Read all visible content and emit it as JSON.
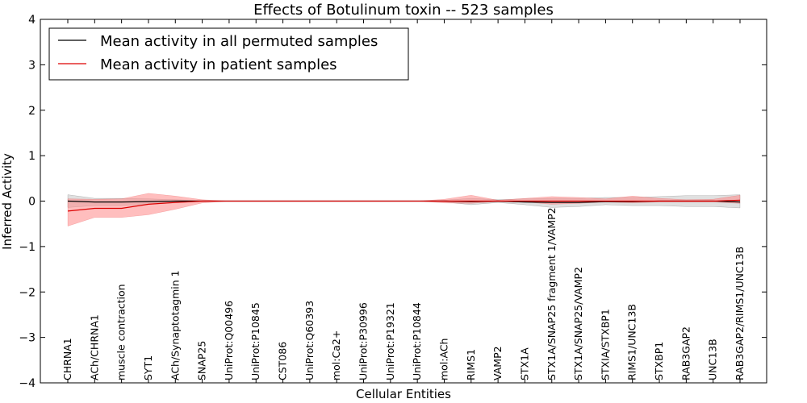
{
  "chart_data": {
    "type": "line",
    "title": "Effects of Botulinum toxin -- 523 samples",
    "xlabel": "Cellular Entities",
    "ylabel": "Inferred Activity",
    "ylim": [
      -4,
      4
    ],
    "yticks": [
      4,
      3,
      2,
      1,
      0,
      -1,
      -2,
      -3,
      -4
    ],
    "ytick_labels": [
      "4",
      "3",
      "2",
      "1",
      "0",
      "−1",
      "−2",
      "−3",
      "−4"
    ],
    "categories": [
      "CHRNA1",
      "ACh/CHRNA1",
      "muscle contraction",
      "SYT1",
      "ACh/Synaptotagmin 1",
      "SNAP25",
      "UniProt:Q00496",
      "UniProt:P10845",
      "CST086",
      "UniProt:Q60393",
      "mol:Ca2+",
      "UniProt:P30996",
      "UniProt:P19321",
      "UniProt:P10844",
      "mol:ACh",
      "RIMS1",
      "VAMP2",
      "STX1A",
      "STX1A/SNAP25 fragment 1/VAMP2",
      "STX1A/SNAP25/VAMP2",
      "STXIA/STXBP1",
      "RIMS1/UNC13B",
      "STXBP1",
      "RAB3GAP2",
      "UNC13B",
      "RAB3GAP2/RIMS1/UNC13B"
    ],
    "series": [
      {
        "name": "Mean activity in all permuted samples",
        "color": "#000000",
        "band_color": "#bbbbbb",
        "values": [
          0.0,
          -0.02,
          -0.02,
          -0.01,
          0.0,
          0.0,
          0.0,
          0.0,
          0.0,
          0.0,
          0.0,
          0.0,
          0.0,
          0.0,
          0.0,
          -0.01,
          0.0,
          -0.02,
          -0.03,
          -0.03,
          -0.01,
          -0.01,
          0.0,
          0.0,
          0.0,
          -0.02
        ],
        "upper": [
          0.14,
          0.06,
          0.06,
          0.05,
          0.03,
          0.01,
          0.0,
          0.0,
          0.0,
          0.0,
          0.0,
          0.0,
          0.0,
          0.0,
          0.02,
          0.06,
          0.03,
          0.05,
          0.06,
          0.06,
          0.08,
          0.08,
          0.1,
          0.12,
          0.12,
          0.14
        ],
        "lower": [
          -0.14,
          -0.1,
          -0.1,
          -0.07,
          -0.04,
          -0.01,
          0.0,
          0.0,
          0.0,
          0.0,
          0.0,
          0.0,
          0.0,
          0.0,
          -0.02,
          -0.08,
          -0.03,
          -0.08,
          -0.14,
          -0.12,
          -0.08,
          -0.1,
          -0.1,
          -0.12,
          -0.12,
          -0.15
        ]
      },
      {
        "name": "Mean activity in patient samples",
        "color": "#dd0000",
        "band_color": "#ff8888",
        "values": [
          -0.22,
          -0.16,
          -0.16,
          -0.07,
          -0.03,
          0.0,
          0.0,
          0.0,
          0.0,
          0.0,
          0.0,
          0.0,
          0.0,
          0.0,
          0.0,
          0.0,
          0.0,
          0.0,
          0.0,
          0.0,
          0.0,
          0.0,
          0.0,
          0.0,
          0.0,
          0.02
        ],
        "upper": [
          0.05,
          0.04,
          0.05,
          0.17,
          0.11,
          0.03,
          0.0,
          0.0,
          0.0,
          0.0,
          0.0,
          0.0,
          0.0,
          0.0,
          0.04,
          0.13,
          0.02,
          0.06,
          0.1,
          0.08,
          0.05,
          0.11,
          0.06,
          0.03,
          0.04,
          0.13
        ],
        "lower": [
          -0.55,
          -0.36,
          -0.36,
          -0.3,
          -0.18,
          -0.04,
          0.0,
          0.0,
          0.0,
          0.0,
          0.0,
          0.0,
          0.0,
          0.0,
          -0.04,
          -0.05,
          -0.01,
          -0.02,
          -0.07,
          -0.05,
          -0.02,
          -0.04,
          -0.02,
          -0.02,
          -0.02,
          -0.05
        ]
      }
    ],
    "legend": {
      "position": "top-left",
      "entries": [
        "Mean activity in all permuted samples",
        "Mean activity in patient samples"
      ]
    }
  }
}
